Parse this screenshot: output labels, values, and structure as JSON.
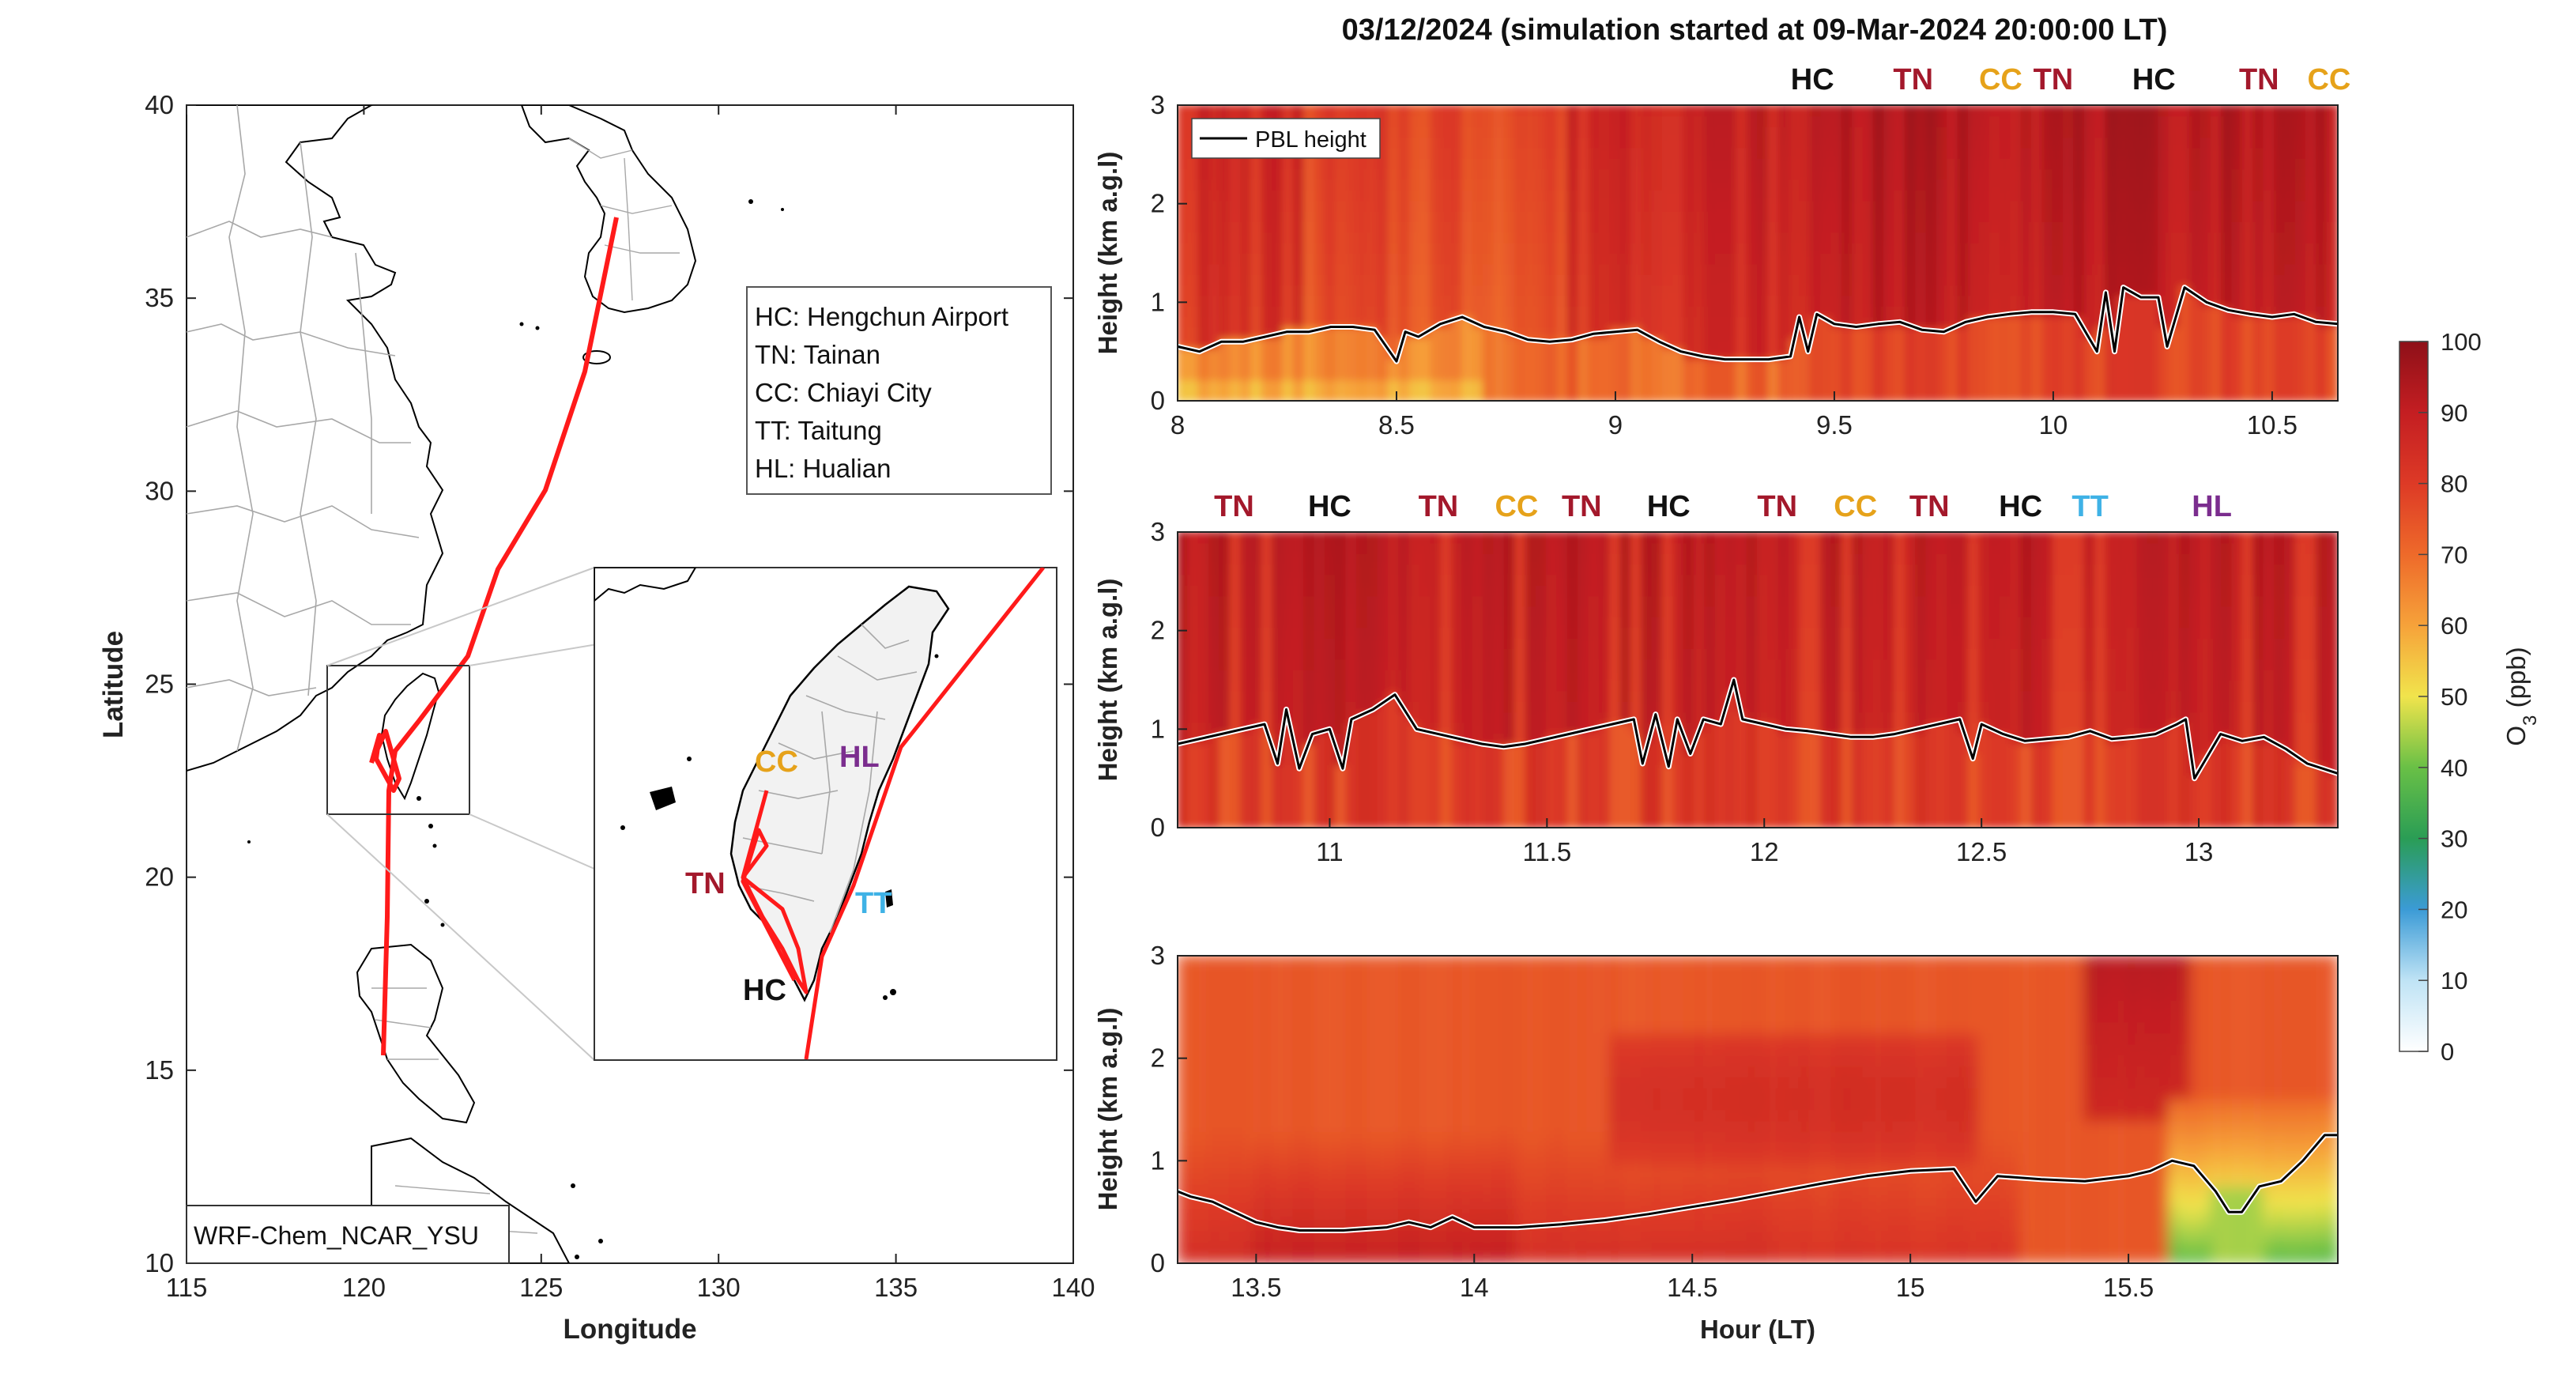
{
  "figure_title": "03/12/2024 (simulation started at 09-Mar-2024 20:00:00 LT)",
  "map": {
    "xlabel": "Longitude",
    "ylabel": "Latitude",
    "xlim": [
      115,
      140
    ],
    "ylim": [
      10,
      40
    ],
    "xticks": [
      "115",
      "120",
      "125",
      "130",
      "135",
      "140"
    ],
    "yticks": [
      "10",
      "15",
      "20",
      "25",
      "30",
      "35",
      "40"
    ],
    "model_label": "WRF-Chem_NCAR_YSU",
    "legend": [
      "HC: Hengchun Airport",
      "TN: Tainan",
      "CC: Chiayi City",
      "TT: Taitung",
      "HL: Hualian"
    ],
    "track_color": "#ff1a1a",
    "inset_labels": [
      {
        "text": "CC",
        "color": "#e6a21a"
      },
      {
        "text": "HL",
        "color": "#7b2d8e"
      },
      {
        "text": "TN",
        "color": "#a3182b"
      },
      {
        "text": "TT",
        "color": "#3fb2e6"
      },
      {
        "text": "HC",
        "color": "#111111"
      }
    ]
  },
  "colorbar": {
    "label": "O3 (ppb)",
    "label_main": "O",
    "label_sub": "3",
    "label_rest": " (ppb)",
    "ticks": [
      "0",
      "10",
      "20",
      "30",
      "40",
      "50",
      "60",
      "70",
      "80",
      "90",
      "100"
    ],
    "stops": [
      "#ffffff",
      "#bfe3f5",
      "#3b9bd6",
      "#2a9d55",
      "#69c046",
      "#f1e44c",
      "#f6a23a",
      "#ee6a2a",
      "#dd3a26",
      "#c41e22",
      "#8e1018"
    ]
  },
  "site_colors": {
    "HC": "#111111",
    "TN": "#a3182b",
    "CC": "#e6a21a",
    "TT": "#3fb2e6",
    "HL": "#7b2d8e"
  },
  "chart_data": [
    {
      "type": "heatmap",
      "ylabel": "Height (km a.g.l)",
      "xlim": [
        8,
        10.65
      ],
      "ylim": [
        0,
        3
      ],
      "xticks": [
        "8",
        "8.5",
        "9",
        "9.5",
        "10",
        "10.5"
      ],
      "yticks": [
        "0",
        "1",
        "2",
        "3"
      ],
      "legend": "PBL height",
      "site_labels": [
        {
          "text": "HC",
          "x": 9.45
        },
        {
          "text": "TN",
          "x": 9.68
        },
        {
          "text": "CC",
          "x": 9.88
        },
        {
          "text": "TN",
          "x": 10.0
        },
        {
          "text": "HC",
          "x": 10.23
        },
        {
          "text": "TN",
          "x": 10.47
        },
        {
          "text": "CC",
          "x": 10.63
        }
      ],
      "pbl_x": [
        8.0,
        8.05,
        8.1,
        8.15,
        8.2,
        8.25,
        8.3,
        8.35,
        8.4,
        8.45,
        8.5,
        8.52,
        8.55,
        8.6,
        8.65,
        8.7,
        8.75,
        8.8,
        8.85,
        8.9,
        8.95,
        9.0,
        9.05,
        9.1,
        9.15,
        9.2,
        9.25,
        9.3,
        9.35,
        9.4,
        9.42,
        9.44,
        9.46,
        9.5,
        9.55,
        9.6,
        9.65,
        9.7,
        9.75,
        9.8,
        9.85,
        9.9,
        9.95,
        10.0,
        10.05,
        10.1,
        10.12,
        10.14,
        10.16,
        10.2,
        10.24,
        10.26,
        10.3,
        10.35,
        10.4,
        10.45,
        10.5,
        10.55,
        10.6,
        10.65
      ],
      "pbl_y": [
        0.55,
        0.5,
        0.6,
        0.6,
        0.65,
        0.7,
        0.7,
        0.75,
        0.75,
        0.72,
        0.4,
        0.7,
        0.65,
        0.78,
        0.85,
        0.75,
        0.7,
        0.62,
        0.6,
        0.62,
        0.68,
        0.7,
        0.72,
        0.6,
        0.5,
        0.45,
        0.42,
        0.42,
        0.42,
        0.45,
        0.85,
        0.5,
        0.88,
        0.78,
        0.75,
        0.78,
        0.8,
        0.72,
        0.7,
        0.8,
        0.85,
        0.88,
        0.9,
        0.9,
        0.88,
        0.5,
        1.1,
        0.5,
        1.15,
        1.05,
        1.05,
        0.55,
        1.15,
        1.0,
        0.92,
        0.88,
        0.85,
        0.88,
        0.8,
        0.78
      ],
      "o3_hint": "red to dark red upper levels (70-95 ppb), yellow-orange below PBL (55-75 ppb)"
    },
    {
      "type": "heatmap",
      "ylabel": "Height (km a.g.l)",
      "xlim": [
        10.65,
        13.32
      ],
      "ylim": [
        0,
        3
      ],
      "xticks": [
        "11",
        "11.5",
        "12",
        "12.5",
        "13"
      ],
      "yticks": [
        "0",
        "1",
        "2",
        "3"
      ],
      "site_labels": [
        {
          "text": "TN",
          "x": 10.78
        },
        {
          "text": "HC",
          "x": 11.0
        },
        {
          "text": "TN",
          "x": 11.25
        },
        {
          "text": "CC",
          "x": 11.43
        },
        {
          "text": "TN",
          "x": 11.58
        },
        {
          "text": "HC",
          "x": 11.78
        },
        {
          "text": "TN",
          "x": 12.03
        },
        {
          "text": "CC",
          "x": 12.21
        },
        {
          "text": "TN",
          "x": 12.38
        },
        {
          "text": "HC",
          "x": 12.59
        },
        {
          "text": "TT",
          "x": 12.75
        },
        {
          "text": "HL",
          "x": 13.03
        }
      ],
      "pbl_x": [
        10.65,
        10.7,
        10.75,
        10.8,
        10.85,
        10.88,
        10.9,
        10.93,
        10.96,
        11.0,
        11.03,
        11.05,
        11.1,
        11.15,
        11.2,
        11.25,
        11.3,
        11.35,
        11.4,
        11.45,
        11.5,
        11.55,
        11.6,
        11.65,
        11.7,
        11.72,
        11.75,
        11.78,
        11.8,
        11.83,
        11.86,
        11.9,
        11.93,
        11.95,
        12.0,
        12.05,
        12.1,
        12.15,
        12.2,
        12.25,
        12.3,
        12.35,
        12.4,
        12.45,
        12.48,
        12.5,
        12.55,
        12.6,
        12.65,
        12.7,
        12.75,
        12.8,
        12.85,
        12.9,
        12.95,
        12.97,
        12.99,
        13.05,
        13.1,
        13.15,
        13.2,
        13.25,
        13.32
      ],
      "pbl_y": [
        0.85,
        0.9,
        0.95,
        1.0,
        1.05,
        0.65,
        1.2,
        0.6,
        0.95,
        1.0,
        0.6,
        1.1,
        1.2,
        1.35,
        1.0,
        0.95,
        0.9,
        0.85,
        0.82,
        0.85,
        0.9,
        0.95,
        1.0,
        1.05,
        1.1,
        0.65,
        1.15,
        0.62,
        1.1,
        0.75,
        1.1,
        1.05,
        1.5,
        1.1,
        1.05,
        1.0,
        0.98,
        0.95,
        0.92,
        0.92,
        0.95,
        1.0,
        1.05,
        1.1,
        0.7,
        1.05,
        0.95,
        0.88,
        0.9,
        0.92,
        0.98,
        0.9,
        0.92,
        0.95,
        1.05,
        1.1,
        0.5,
        0.95,
        0.88,
        0.92,
        0.8,
        0.65,
        0.55
      ],
      "o3_hint": "dark red upper levels (85-95 ppb), red/orange below PBL with streaks (70-85 ppb)"
    },
    {
      "type": "heatmap",
      "ylabel": "Height (km a.g.l)",
      "xlabel": "Hour (LT)",
      "xlim": [
        13.32,
        15.98
      ],
      "ylim": [
        0,
        3
      ],
      "xticks": [
        "13.5",
        "14",
        "14.5",
        "15",
        "15.5"
      ],
      "yticks": [
        "0",
        "1",
        "2",
        "3"
      ],
      "pbl_x": [
        13.32,
        13.35,
        13.4,
        13.45,
        13.5,
        13.55,
        13.6,
        13.7,
        13.8,
        13.85,
        13.9,
        13.95,
        14.0,
        14.1,
        14.2,
        14.3,
        14.4,
        14.5,
        14.6,
        14.7,
        14.8,
        14.9,
        15.0,
        15.1,
        15.15,
        15.2,
        15.3,
        15.4,
        15.5,
        15.55,
        15.6,
        15.65,
        15.7,
        15.73,
        15.76,
        15.8,
        15.85,
        15.9,
        15.95,
        15.98
      ],
      "pbl_y": [
        0.7,
        0.65,
        0.6,
        0.5,
        0.4,
        0.35,
        0.32,
        0.32,
        0.35,
        0.4,
        0.35,
        0.45,
        0.35,
        0.35,
        0.38,
        0.42,
        0.48,
        0.55,
        0.62,
        0.7,
        0.78,
        0.85,
        0.9,
        0.92,
        0.6,
        0.85,
        0.82,
        0.8,
        0.85,
        0.9,
        1.0,
        0.95,
        0.7,
        0.5,
        0.5,
        0.75,
        0.8,
        1.0,
        1.25,
        1.25
      ],
      "o3_hint": "orange background (72-76 ppb), red/dark red band below 1.2 km (82-90 ppb), yellow/green near 15.7-15.8 (40-60 ppb)"
    }
  ]
}
